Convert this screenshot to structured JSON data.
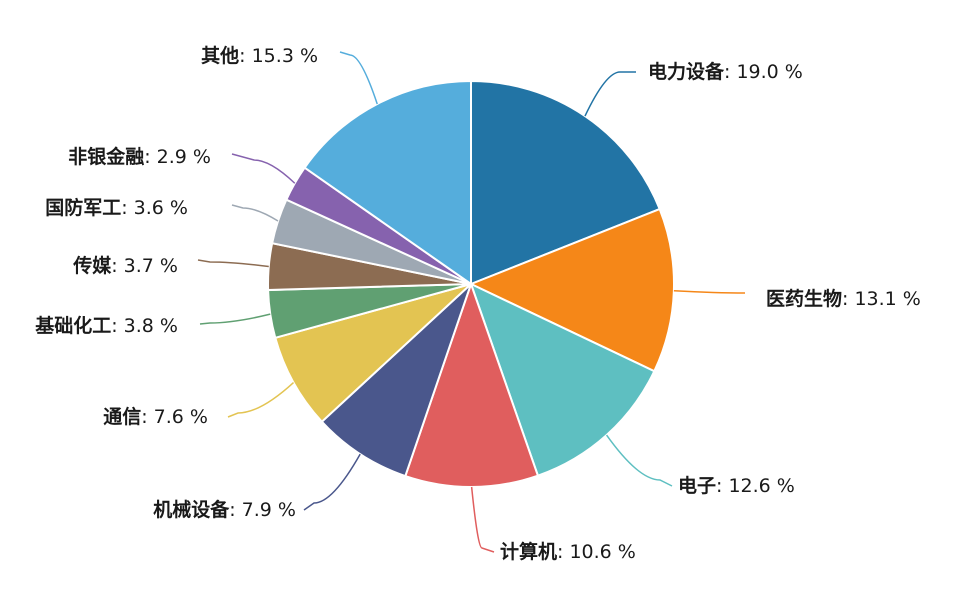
{
  "chart_data": {
    "type": "pie",
    "title": "",
    "slices": [
      {
        "label": "电力设备",
        "value": 19.0,
        "display": "19.0 %",
        "color": "#2274a5"
      },
      {
        "label": "医药生物",
        "value": 13.1,
        "display": "13.1 %",
        "color": "#f58718"
      },
      {
        "label": "电子",
        "value": 12.6,
        "display": "12.6 %",
        "color": "#5ebfc1"
      },
      {
        "label": "计算机",
        "value": 10.6,
        "display": "10.6 %",
        "color": "#e05e5e"
      },
      {
        "label": "机械设备",
        "value": 7.9,
        "display": "7.9 %",
        "color": "#4a578c"
      },
      {
        "label": "通信",
        "value": 7.6,
        "display": "7.6 %",
        "color": "#e3c452"
      },
      {
        "label": "基础化工",
        "value": 3.8,
        "display": "3.8 %",
        "color": "#60a072"
      },
      {
        "label": "传媒",
        "value": 3.7,
        "display": "3.7 %",
        "color": "#8c6c52"
      },
      {
        "label": "国防军工",
        "value": 3.6,
        "display": "3.6 %",
        "color": "#9ea8b3"
      },
      {
        "label": "非银金融",
        "value": 2.9,
        "display": "2.9 %",
        "color": "#8662ae"
      },
      {
        "label": "其他",
        "value": 15.3,
        "display": "15.3 %",
        "color": "#55addc"
      }
    ],
    "start_angle_deg": 0,
    "direction": "clockwise",
    "legend": "none",
    "label_separator": ": "
  }
}
